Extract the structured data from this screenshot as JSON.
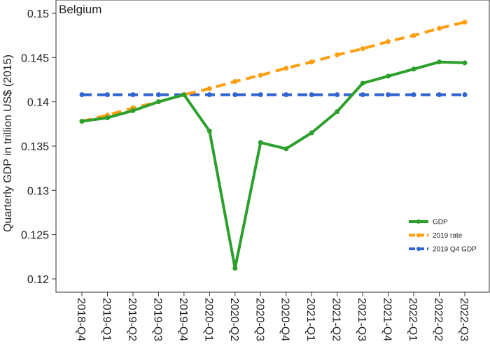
{
  "chart_data": {
    "type": "line",
    "title": "Belgium",
    "xlabel": "",
    "ylabel": "Quarterly GDP in trillion US$ (2015)",
    "categories": [
      "2018-Q4",
      "2019-Q1",
      "2019-Q2",
      "2019-Q3",
      "2019-Q4",
      "2020-Q1",
      "2020-Q2",
      "2020-Q3",
      "2020-Q4",
      "2021-Q1",
      "2021-Q2",
      "2021-Q3",
      "2021-Q4",
      "2022-Q1",
      "2022-Q2",
      "2022-Q3"
    ],
    "ylim": [
      0.1185,
      0.1515
    ],
    "yticks": [
      0.12,
      0.125,
      0.13,
      0.135,
      0.14,
      0.145,
      0.15
    ],
    "ytick_labels": [
      "0.12",
      "0.125",
      "0.13",
      "0.135",
      "0.14",
      "0.145",
      "0.15"
    ],
    "grid": false,
    "legend_position": "bottom-right",
    "series": [
      {
        "name": "GDP",
        "color": "#2ca02c",
        "dash": "solid",
        "values": [
          0.1378,
          0.1382,
          0.139,
          0.14,
          0.1408,
          0.1367,
          0.1212,
          0.1354,
          0.1347,
          0.1365,
          0.1389,
          0.1421,
          0.1429,
          0.1437,
          0.1445,
          0.1444
        ]
      },
      {
        "name": "2019 rate",
        "color": "#ff9e0e",
        "dash": "dashed",
        "values": [
          0.1378,
          0.1385,
          0.1393,
          0.14,
          0.1408,
          0.1415,
          0.1423,
          0.143,
          0.1438,
          0.1445,
          0.1453,
          0.146,
          0.1468,
          0.1475,
          0.1483,
          0.149
        ]
      },
      {
        "name": "2019 Q4 GDP",
        "color": "#2f64d2",
        "dash": "dashed",
        "values": [
          0.1408,
          0.1408,
          0.1408,
          0.1408,
          0.1408,
          0.1408,
          0.1408,
          0.1408,
          0.1408,
          0.1408,
          0.1408,
          0.1408,
          0.1408,
          0.1408,
          0.1408,
          0.1408
        ]
      }
    ]
  }
}
